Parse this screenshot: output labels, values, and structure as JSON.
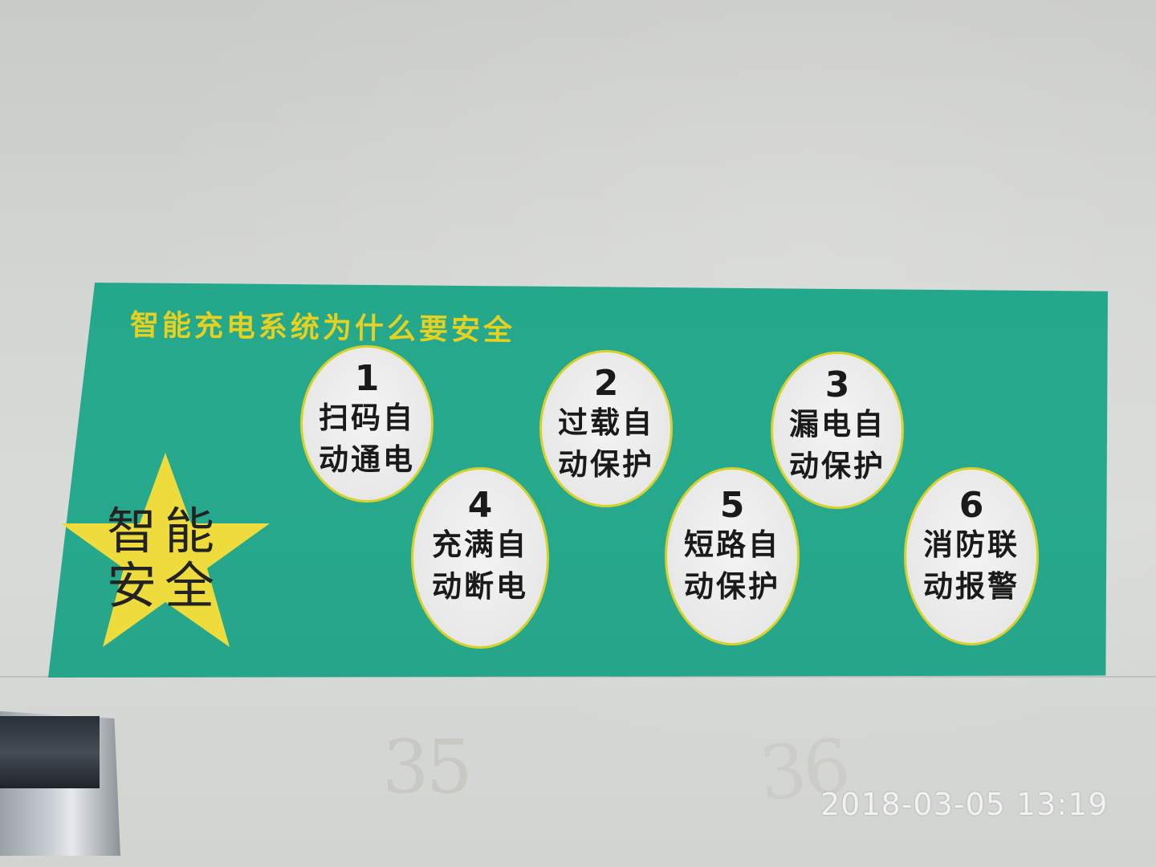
{
  "sign": {
    "title": "智能充电系统为什么要安全",
    "star": {
      "line1": "智能",
      "line2": "安全"
    },
    "items": [
      {
        "number": "1",
        "line1": "扫码自",
        "line2": "动通电"
      },
      {
        "number": "2",
        "line1": "过载自",
        "line2": "动保护"
      },
      {
        "number": "3",
        "line1": "漏电自",
        "line2": "动保护"
      },
      {
        "number": "4",
        "line1": "充满自",
        "line2": "动断电"
      },
      {
        "number": "5",
        "line1": "短路自",
        "line2": "动保护"
      },
      {
        "number": "6",
        "line1": "消防联",
        "line2": "动报警"
      }
    ]
  },
  "wall": {
    "label_left": "35",
    "label_right": "36"
  },
  "photo": {
    "timestamp": "2018-03-05  13:19"
  },
  "colors": {
    "sign_green": "#24a88c",
    "title_yellow": "#e6d020",
    "star_yellow": "#eedc3c",
    "oval_border": "#d6d22a"
  }
}
